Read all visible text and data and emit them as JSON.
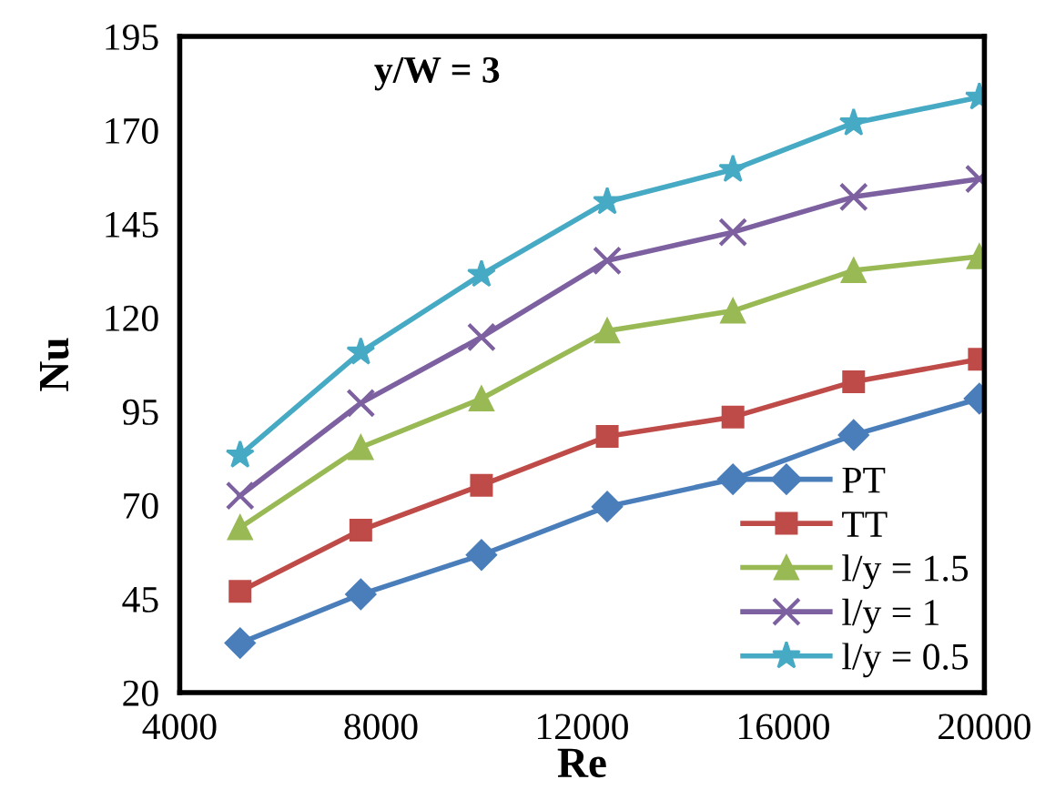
{
  "chart_data": {
    "type": "line",
    "xlabel": "Re",
    "ylabel": "Nu",
    "annotations": [
      "y/W = 3"
    ],
    "x": [
      5200,
      7600,
      10000,
      12500,
      15000,
      17400,
      19900
    ],
    "series": [
      {
        "name": "PT",
        "color": "#4a7ebb",
        "marker": "diamond",
        "values": [
          33.2,
          46.2,
          56.7,
          69.6,
          76.9,
          88.7,
          98.4
        ]
      },
      {
        "name": "TT",
        "color": "#be4b48",
        "marker": "square",
        "values": [
          47.0,
          63.3,
          75.3,
          88.3,
          93.5,
          102.9,
          108.9
        ]
      },
      {
        "name": "l/y = 1.5",
        "color": "#98b954",
        "marker": "triangle",
        "values": [
          64.0,
          85.4,
          98.4,
          116.5,
          121.8,
          132.6,
          136.3
        ]
      },
      {
        "name": "l/y = 1",
        "color": "#7d60a0",
        "marker": "cross",
        "values": [
          72.5,
          97.2,
          114.8,
          135.2,
          142.8,
          152.2,
          157.0
        ]
      },
      {
        "name": "l/y = 0.5",
        "color": "#46aac5",
        "marker": "star",
        "values": [
          83.3,
          110.8,
          131.5,
          150.9,
          159.5,
          171.9,
          178.8
        ]
      }
    ],
    "xlim": [
      4000,
      20000
    ],
    "xticks": [
      4000,
      8000,
      12000,
      16000,
      20000
    ],
    "ylim": [
      20,
      195
    ],
    "yticks": [
      20,
      45,
      70,
      95,
      120,
      145,
      170,
      195
    ],
    "grid": false,
    "legend": "bottom right",
    "line_style": "solid"
  }
}
